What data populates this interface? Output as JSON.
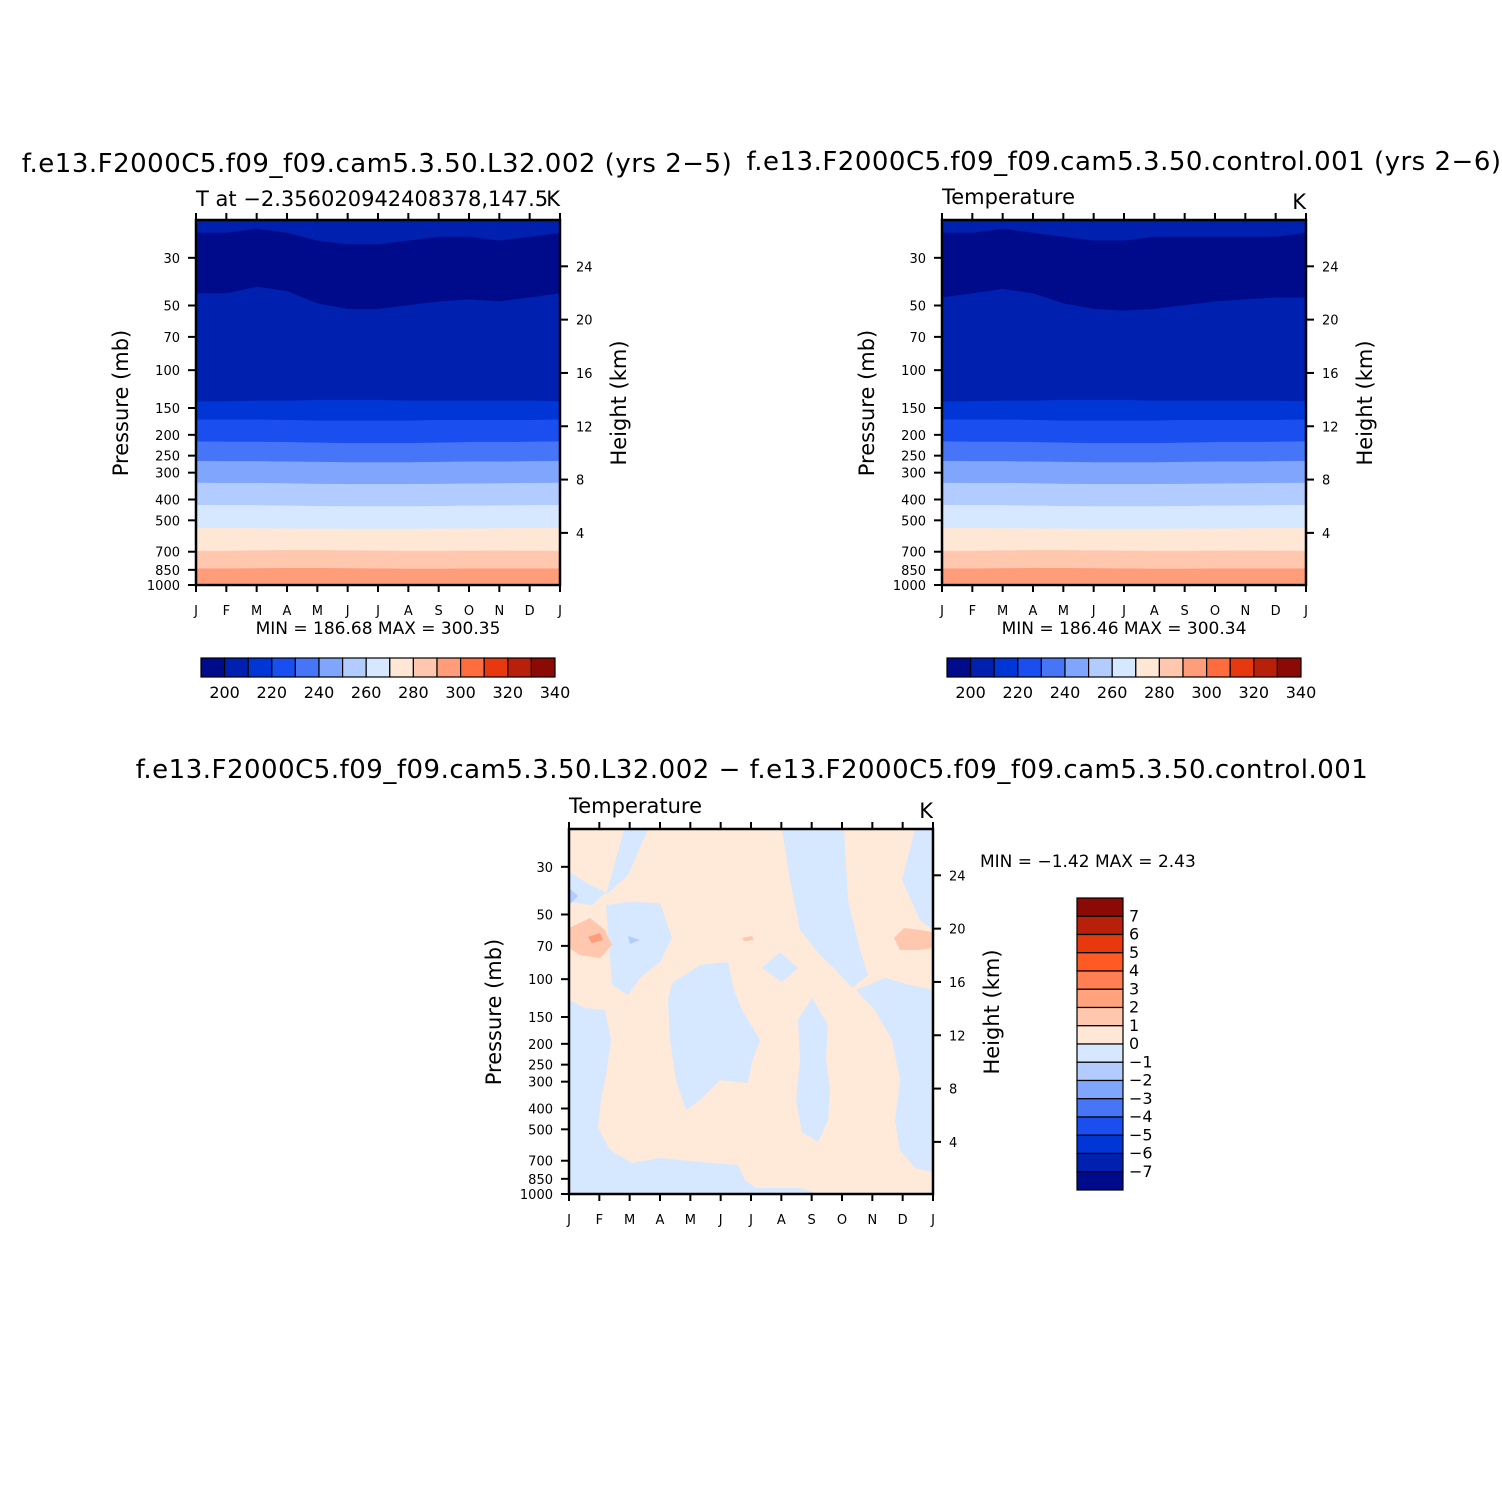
{
  "chart_data": [
    {
      "type": "contour",
      "title": "f.e13.F2000C5.f09_f09.cam5.3.50.L32.002 (yrs 2−5)",
      "subtitle_left": "T at −2.356020942408378,147.5",
      "subtitle_right": "K",
      "ylabel": "Pressure (mb)",
      "ylabel_right": "Height (km)",
      "x_ticks": [
        "J",
        "F",
        "M",
        "A",
        "M",
        "J",
        "J",
        "A",
        "S",
        "O",
        "N",
        "D",
        "J"
      ],
      "pressure_ticks": [
        30,
        50,
        70,
        100,
        150,
        200,
        250,
        300,
        400,
        500,
        700,
        850,
        1000
      ],
      "height_ticks": [
        4,
        8,
        12,
        16,
        20,
        24
      ],
      "ylim": [
        20,
        1000
      ],
      "min_max_text": "MIN =  186.68  MAX =  300.35",
      "colorbar": {
        "orientation": "horizontal",
        "levels": [
          200,
          210,
          220,
          230,
          240,
          250,
          260,
          270,
          280,
          290,
          300,
          310,
          320,
          330,
          340
        ],
        "labels": [
          "200",
          "220",
          "240",
          "260",
          "280",
          "300",
          "320",
          "340"
        ],
        "colors": [
          "#000b8c",
          "#0020b0",
          "#0035d6",
          "#1b4eee",
          "#4775f7",
          "#7fa5fc",
          "#b2ccff",
          "#d6e8ff",
          "#ffe7d6",
          "#ffc7ae",
          "#ff9c7a",
          "#ff6c3d",
          "#e8380e",
          "#b8200a",
          "#8c0a06"
        ]
      },
      "levels_boundaries_mb": {
        "months": [
          "J",
          "F",
          "M",
          "A",
          "M",
          "J",
          "J",
          "A",
          "S",
          "O",
          "N",
          "D",
          "J"
        ],
        "b_200": [
          23,
          23,
          22,
          23,
          25,
          26,
          26,
          25,
          24,
          24,
          25,
          24,
          23
        ],
        "b_210": [
          44,
          44,
          41,
          43,
          49,
          52,
          52,
          50,
          48,
          47,
          48,
          46,
          44
        ],
        "b_220": [
          140,
          140,
          139,
          139,
          138,
          138,
          138,
          139,
          139,
          139,
          139,
          139,
          140
        ],
        "b_230": [
          170,
          170,
          170,
          171,
          172,
          172,
          172,
          172,
          171,
          171,
          171,
          171,
          170
        ],
        "b_240": [
          215,
          216,
          216,
          217,
          218,
          219,
          219,
          219,
          218,
          217,
          217,
          216,
          215
        ],
        "b_250": [
          265,
          266,
          266,
          267,
          268,
          269,
          269,
          269,
          268,
          267,
          267,
          266,
          265
        ],
        "b_260": [
          335,
          336,
          336,
          337,
          339,
          340,
          340,
          340,
          339,
          338,
          337,
          336,
          335
        ],
        "b_270": [
          425,
          426,
          426,
          428,
          430,
          431,
          431,
          431,
          430,
          428,
          427,
          426,
          425
        ],
        "b_280": [
          545,
          545,
          546,
          547,
          548,
          549,
          549,
          549,
          548,
          547,
          546,
          545,
          545
        ],
        "b_290": [
          695,
          695,
          692,
          690,
          690,
          692,
          694,
          695,
          695,
          694,
          693,
          694,
          695
        ],
        "b_300": [
          840,
          840,
          838,
          836,
          836,
          838,
          840,
          842,
          842,
          841,
          840,
          840,
          840
        ]
      }
    },
    {
      "type": "contour",
      "title": "f.e13.F2000C5.f09_f09.cam5.3.50.control.001 (yrs 2−6)",
      "subtitle_left": "Temperature",
      "subtitle_right": "K",
      "ylabel": "Pressure (mb)",
      "ylabel_right": "Height (km)",
      "x_ticks": [
        "J",
        "F",
        "M",
        "A",
        "M",
        "J",
        "J",
        "A",
        "S",
        "O",
        "N",
        "D",
        "J"
      ],
      "pressure_ticks": [
        30,
        50,
        70,
        100,
        150,
        200,
        250,
        300,
        400,
        500,
        700,
        850,
        1000
      ],
      "height_ticks": [
        4,
        8,
        12,
        16,
        20,
        24
      ],
      "ylim": [
        20,
        1000
      ],
      "min_max_text": "MIN =  186.46  MAX =  300.34",
      "colorbar": {
        "orientation": "horizontal",
        "levels": [
          200,
          210,
          220,
          230,
          240,
          250,
          260,
          270,
          280,
          290,
          300,
          310,
          320,
          330,
          340
        ],
        "labels": [
          "200",
          "220",
          "240",
          "260",
          "280",
          "300",
          "320",
          "340"
        ],
        "colors": [
          "#000b8c",
          "#0020b0",
          "#0035d6",
          "#1b4eee",
          "#4775f7",
          "#7fa5fc",
          "#b2ccff",
          "#d6e8ff",
          "#ffe7d6",
          "#ffc7ae",
          "#ff9c7a",
          "#ff6c3d",
          "#e8380e",
          "#b8200a",
          "#8c0a06"
        ]
      },
      "levels_boundaries_mb": {
        "months": [
          "J",
          "F",
          "M",
          "A",
          "M",
          "J",
          "J",
          "A",
          "S",
          "O",
          "N",
          "D",
          "J"
        ],
        "b_200": [
          23,
          23,
          22,
          23,
          24,
          25,
          25,
          24,
          24,
          24,
          24,
          24,
          23
        ],
        "b_210": [
          46,
          44,
          42,
          44,
          49,
          52,
          53,
          52,
          50,
          48,
          47,
          46,
          46
        ],
        "b_220": [
          140,
          140,
          139,
          139,
          138,
          138,
          138,
          139,
          139,
          139,
          139,
          139,
          140
        ],
        "b_230": [
          170,
          170,
          170,
          171,
          172,
          172,
          172,
          172,
          171,
          171,
          171,
          171,
          170
        ],
        "b_240": [
          215,
          216,
          216,
          217,
          218,
          219,
          219,
          219,
          218,
          217,
          217,
          216,
          215
        ],
        "b_250": [
          265,
          266,
          266,
          267,
          268,
          269,
          269,
          269,
          268,
          267,
          267,
          266,
          265
        ],
        "b_260": [
          335,
          336,
          336,
          337,
          339,
          340,
          340,
          340,
          339,
          338,
          337,
          336,
          335
        ],
        "b_270": [
          425,
          426,
          426,
          428,
          430,
          431,
          431,
          431,
          430,
          428,
          427,
          426,
          425
        ],
        "b_280": [
          545,
          545,
          546,
          547,
          548,
          549,
          549,
          549,
          548,
          547,
          546,
          545,
          545
        ],
        "b_290": [
          695,
          695,
          692,
          690,
          690,
          692,
          694,
          695,
          695,
          694,
          693,
          694,
          695
        ],
        "b_300": [
          840,
          840,
          838,
          836,
          836,
          838,
          840,
          842,
          842,
          841,
          840,
          840,
          840
        ]
      }
    },
    {
      "type": "contour",
      "title": "f.e13.F2000C5.f09_f09.cam5.3.50.L32.002 − f.e13.F2000C5.f09_f09.cam5.3.50.control.001",
      "subtitle_left": "Temperature",
      "subtitle_right": "K",
      "ylabel": "Pressure (mb)",
      "ylabel_right": "Height (km)",
      "x_ticks": [
        "J",
        "F",
        "M",
        "A",
        "M",
        "J",
        "J",
        "A",
        "S",
        "O",
        "N",
        "D",
        "J"
      ],
      "pressure_ticks": [
        30,
        50,
        70,
        100,
        150,
        200,
        250,
        300,
        400,
        500,
        700,
        850,
        1000
      ],
      "height_ticks": [
        4,
        8,
        12,
        16,
        20,
        24
      ],
      "ylim": [
        20,
        1000
      ],
      "min_max_text": "MIN =  −1.42  MAX =    2.43",
      "colorbar": {
        "orientation": "vertical",
        "levels": [
          7,
          6,
          5,
          4,
          3,
          2,
          1,
          0,
          -1,
          -2,
          -3,
          -4,
          -5,
          -6,
          -7
        ],
        "labels": [
          "7",
          "6",
          "5",
          "4",
          "3",
          "2",
          "1",
          "0",
          "−1",
          "−2",
          "−3",
          "−4",
          "−5",
          "−6",
          "−7"
        ],
        "colors": [
          "#8c0a06",
          "#b8200a",
          "#e8380e",
          "#ff5a24",
          "#ff7e52",
          "#ffa27e",
          "#ffc7ae",
          "#ffe7d6",
          "#d6e8ff",
          "#b2ccff",
          "#7fa5fc",
          "#4775f7",
          "#1b4eee",
          "#0035d6",
          "#0020b0",
          "#000b8c"
        ]
      }
    }
  ]
}
